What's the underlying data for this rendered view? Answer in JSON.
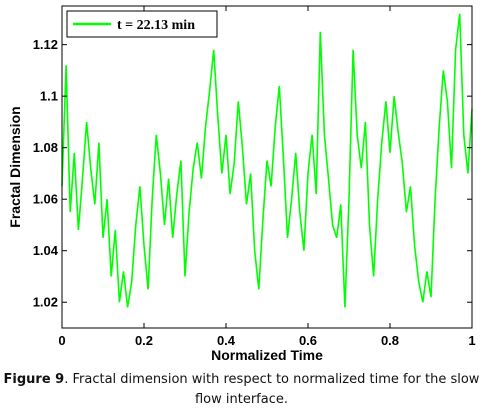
{
  "chart_data": {
    "type": "line",
    "title": "",
    "xlabel": "Normalized Time",
    "ylabel": "Fractal Dimension",
    "xlim": [
      0,
      1
    ],
    "ylim": [
      1.01,
      1.135
    ],
    "xticks": [
      "0",
      "0.2",
      "0.4",
      "0.6",
      "0.8",
      "1"
    ],
    "yticks": [
      "1.02",
      "1.04",
      "1.06",
      "1.08",
      "1.1",
      "1.12"
    ],
    "xtick_values": [
      0,
      0.2,
      0.4,
      0.6,
      0.8,
      1
    ],
    "ytick_values": [
      1.02,
      1.04,
      1.06,
      1.08,
      1.1,
      1.12
    ],
    "grid": false,
    "legend_position": "top-left",
    "line_color": "#00ff00",
    "series": [
      {
        "name": "t = 22.13 min",
        "x": [
          0,
          0.01,
          0.02,
          0.03,
          0.04,
          0.05,
          0.06,
          0.07,
          0.08,
          0.09,
          0.1,
          0.11,
          0.12,
          0.13,
          0.14,
          0.15,
          0.16,
          0.17,
          0.18,
          0.19,
          0.2,
          0.21,
          0.22,
          0.23,
          0.24,
          0.25,
          0.26,
          0.27,
          0.28,
          0.29,
          0.3,
          0.31,
          0.32,
          0.33,
          0.34,
          0.35,
          0.36,
          0.37,
          0.38,
          0.39,
          0.4,
          0.41,
          0.42,
          0.43,
          0.44,
          0.45,
          0.46,
          0.47,
          0.48,
          0.49,
          0.5,
          0.51,
          0.52,
          0.53,
          0.54,
          0.55,
          0.56,
          0.57,
          0.58,
          0.59,
          0.6,
          0.61,
          0.62,
          0.63,
          0.64,
          0.65,
          0.66,
          0.67,
          0.68,
          0.69,
          0.7,
          0.71,
          0.72,
          0.73,
          0.74,
          0.75,
          0.76,
          0.77,
          0.78,
          0.79,
          0.8,
          0.81,
          0.82,
          0.83,
          0.84,
          0.85,
          0.86,
          0.87,
          0.88,
          0.89,
          0.9,
          0.91,
          0.92,
          0.93,
          0.94,
          0.95,
          0.96,
          0.97,
          0.98,
          0.99,
          1.0
        ],
        "y": [
          1.065,
          1.112,
          1.055,
          1.078,
          1.048,
          1.068,
          1.09,
          1.072,
          1.058,
          1.082,
          1.045,
          1.06,
          1.03,
          1.048,
          1.02,
          1.032,
          1.018,
          1.028,
          1.05,
          1.065,
          1.042,
          1.025,
          1.06,
          1.085,
          1.07,
          1.05,
          1.068,
          1.045,
          1.062,
          1.075,
          1.03,
          1.055,
          1.072,
          1.082,
          1.068,
          1.088,
          1.102,
          1.118,
          1.092,
          1.07,
          1.085,
          1.062,
          1.074,
          1.098,
          1.08,
          1.058,
          1.07,
          1.04,
          1.025,
          1.052,
          1.075,
          1.065,
          1.088,
          1.104,
          1.076,
          1.045,
          1.06,
          1.078,
          1.055,
          1.04,
          1.07,
          1.085,
          1.062,
          1.125,
          1.085,
          1.068,
          1.05,
          1.045,
          1.058,
          1.018,
          1.06,
          1.118,
          1.085,
          1.072,
          1.09,
          1.05,
          1.03,
          1.06,
          1.082,
          1.098,
          1.078,
          1.1,
          1.086,
          1.074,
          1.055,
          1.065,
          1.042,
          1.028,
          1.02,
          1.032,
          1.022,
          1.06,
          1.088,
          1.11,
          1.098,
          1.072,
          1.118,
          1.132,
          1.085,
          1.07,
          1.095
        ]
      }
    ]
  },
  "caption": {
    "label": "Figure 9",
    "text": ". Fractal dimension with respect to normalized time for the slow flow interface."
  }
}
